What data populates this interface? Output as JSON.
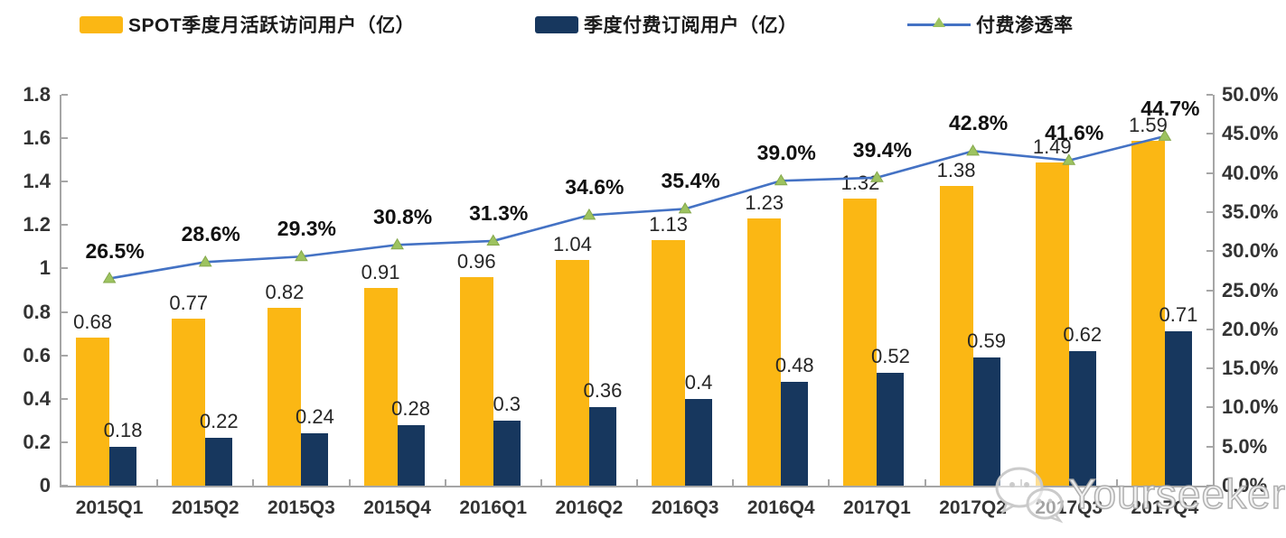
{
  "legend": {
    "items": [
      {
        "label": "SPOT季度月活跃访问用户（亿）",
        "swatch": "bar",
        "color": "#FBB714"
      },
      {
        "label": "季度付费订阅用户（亿）",
        "swatch": "bar",
        "color": "#17375E"
      },
      {
        "label": "付费渗透率",
        "swatch": "line",
        "color": "#4472C4",
        "marker_color": "#9DC360"
      }
    ]
  },
  "chart_data": {
    "type": "bar",
    "subtype": "grouped bars + line (dual axis combo)",
    "categories": [
      "2015Q1",
      "2015Q2",
      "2015Q3",
      "2015Q4",
      "2016Q1",
      "2016Q2",
      "2016Q3",
      "2016Q4",
      "2017Q1",
      "2017Q2",
      "2017Q3",
      "2017Q4"
    ],
    "series": [
      {
        "name": "SPOT季度月活跃访问用户（亿）",
        "type": "bar",
        "axis": "left",
        "color": "#FBB714",
        "values": [
          0.68,
          0.77,
          0.82,
          0.91,
          0.96,
          1.04,
          1.13,
          1.23,
          1.32,
          1.38,
          1.49,
          1.59
        ],
        "labels": [
          "0.68",
          "0.77",
          "0.82",
          "0.91",
          "0.96",
          "1.04",
          "1.13",
          "1.23",
          "1.32",
          "1.38",
          "1.49",
          "1.59"
        ]
      },
      {
        "name": "季度付费订阅用户（亿）",
        "type": "bar",
        "axis": "left",
        "color": "#17375E",
        "values": [
          0.18,
          0.22,
          0.24,
          0.28,
          0.3,
          0.36,
          0.4,
          0.48,
          0.52,
          0.59,
          0.62,
          0.71
        ],
        "labels": [
          "0.18",
          "0.22",
          "0.24",
          "0.28",
          "0.3",
          "0.36",
          "0.4",
          "0.48",
          "0.52",
          "0.59",
          "0.62",
          "0.71"
        ]
      },
      {
        "name": "付费渗透率",
        "type": "line",
        "axis": "right",
        "color": "#4472C4",
        "marker": "triangle",
        "marker_color": "#9DC360",
        "values": [
          26.5,
          28.6,
          29.3,
          30.8,
          31.3,
          34.6,
          35.4,
          39.0,
          39.4,
          42.8,
          41.6,
          44.7
        ],
        "labels": [
          "26.5%",
          "28.6%",
          "29.3%",
          "30.8%",
          "31.3%",
          "34.6%",
          "35.4%",
          "39.0%",
          "39.4%",
          "42.8%",
          "41.6%",
          "44.7%"
        ]
      }
    ],
    "left_axis": {
      "min": 0,
      "max": 1.8,
      "tick_labels": [
        "1.8",
        "1.6",
        "1.4",
        "1.2",
        "1",
        "0.8",
        "0.6",
        "0.4",
        "0.2",
        "0"
      ]
    },
    "right_axis": {
      "min": 0,
      "max": 50,
      "tick_labels": [
        "50.0%",
        "45.0%",
        "40.0%",
        "35.0%",
        "30.0%",
        "25.0%",
        "20.0%",
        "15.0%",
        "10.0%",
        "5.0%",
        "0.0%"
      ]
    },
    "title": "",
    "xlabel": "",
    "ylabel": "",
    "grid": false,
    "legend_position": "top"
  },
  "watermark": {
    "text": "Yourseeker",
    "icon": "wechat-icon"
  },
  "colors": {
    "axis": "#A6A6A6",
    "value_label_text": "#262626",
    "percent_label_text": "#111111"
  }
}
